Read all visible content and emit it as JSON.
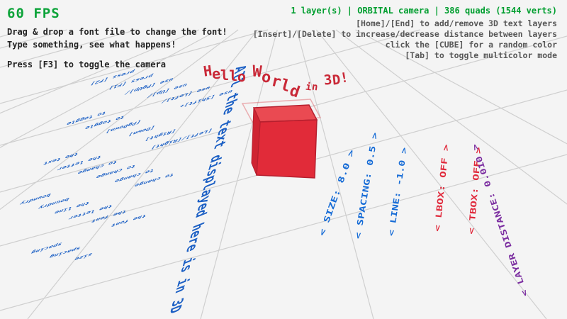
{
  "hud": {
    "fps_label": "60 FPS",
    "hint_line1": "Drag & drop a font file to change the font!",
    "hint_line2": "Type something, see what happens!",
    "hint_camera": "Press [F3] to toggle the camera",
    "status_line": "1 layer(s) | ORBITAL camera |  386 quads (1544 verts)",
    "help_lines": [
      "[Home]/[End] to add/remove 3D text layers",
      "[Insert]/[Delete] to increase/decrease distance between layers",
      "click the [CUBE] for a random color",
      "[Tab] to toggle multicolor mode"
    ]
  },
  "scene": {
    "title_3d": "Hello World in 3D!",
    "floor_headline": "All the text displayed here is in 3D",
    "ground_instructions": [
      {
        "lines": [
          "press [F2]",
          "to toggle",
          "the text",
          "boundry"
        ]
      },
      {
        "lines": [
          "press [F1]",
          "to toggle",
          "the letter",
          "boundry"
        ]
      },
      {
        "lines": [
          "use [PgUp]/",
          "[PgDown]",
          "to change",
          "the line",
          "spacing"
        ]
      },
      {
        "lines": [
          "use [Up]/",
          "[Down]",
          "to change",
          "the letter",
          "spacing"
        ]
      },
      {
        "lines": [
          "use [Left]/",
          "[Right]",
          "to change",
          "the font",
          "size"
        ]
      },
      {
        "lines": [
          "use [Shift]+",
          "[Left]/[Right]",
          "to change",
          "the font"
        ]
      }
    ],
    "param_labels": [
      {
        "text": "< SIZE: 8.0 >",
        "color": "#156bd6"
      },
      {
        "text": "< SPACING: 0.5 >",
        "color": "#156bd6"
      },
      {
        "text": "< LINE: -1.0 >",
        "color": "#156bd6"
      },
      {
        "text": "< LBOX: OFF >",
        "color": "#e02a3c"
      },
      {
        "text": "< TBOX: OFF >",
        "color": "#e02a3c"
      },
      {
        "text": "< LAYER DISTANCE: 0.010 >",
        "color": "#7b2da0"
      }
    ]
  },
  "colors": {
    "fps_green": "#0ca339",
    "status_green": "#009e2f",
    "help_gray": "#575757",
    "ink": "#222222",
    "instruction_blue": "#1b5fc4",
    "title_red": "#c92837",
    "cube_front": "#e12b39",
    "cube_top": "#ea4a52",
    "cube_wire": "#b51f2e",
    "grid_line": "#cfcfcf",
    "background": "#f4f4f4"
  }
}
